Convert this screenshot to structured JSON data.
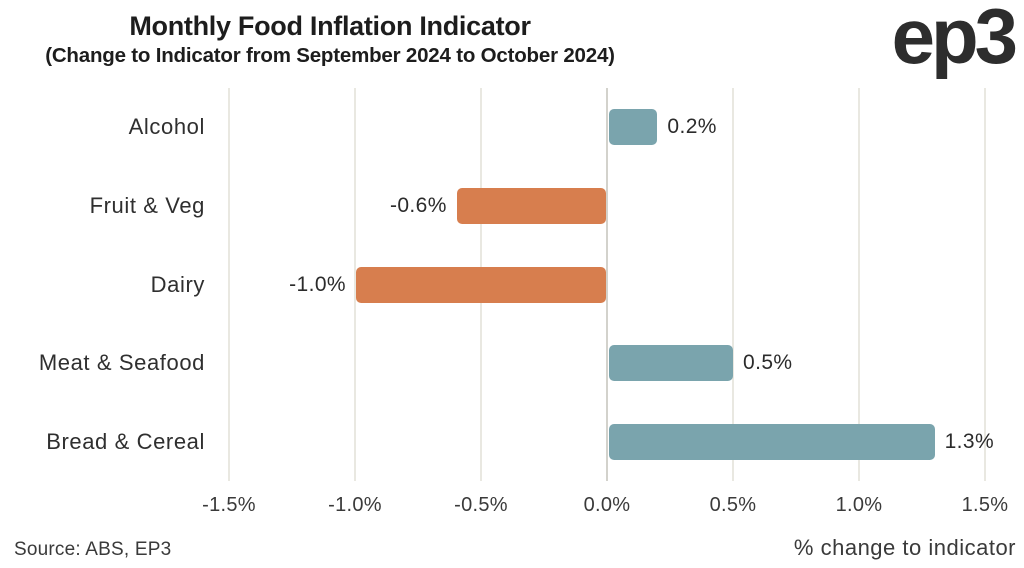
{
  "header": {
    "title": "Monthly Food Inflation Indicator",
    "subtitle": "(Change to Indicator from September 2024 to October 2024)",
    "logo": "ep3"
  },
  "chart_data": {
    "type": "bar",
    "orientation": "horizontal",
    "title": "Monthly Food Inflation Indicator",
    "subtitle": "(Change to Indicator from September 2024 to October 2024)",
    "categories": [
      "Alcohol",
      "Fruit & Veg",
      "Dairy",
      "Meat & Seafood",
      "Bread & Cereal"
    ],
    "values": [
      0.2,
      -0.6,
      -1.0,
      0.5,
      1.3
    ],
    "value_labels": [
      "0.2%",
      "-0.6%",
      "-1.0%",
      "0.5%",
      "1.3%"
    ],
    "xlabel": "% change to indicator",
    "ylabel": "",
    "xlim": [
      -1.5,
      1.5
    ],
    "xticks": [
      -1.5,
      -1.0,
      -0.5,
      0.0,
      0.5,
      1.0,
      1.5
    ],
    "xtick_labels": [
      "-1.5%",
      "-1.0%",
      "-0.5%",
      "0.0%",
      "0.5%",
      "1.0%",
      "1.5%"
    ],
    "grid": true,
    "legend": false,
    "colors": {
      "positive": "#7AA4AD",
      "negative": "#D77E4E"
    }
  },
  "footer": {
    "source": "Source: ABS, EP3"
  }
}
